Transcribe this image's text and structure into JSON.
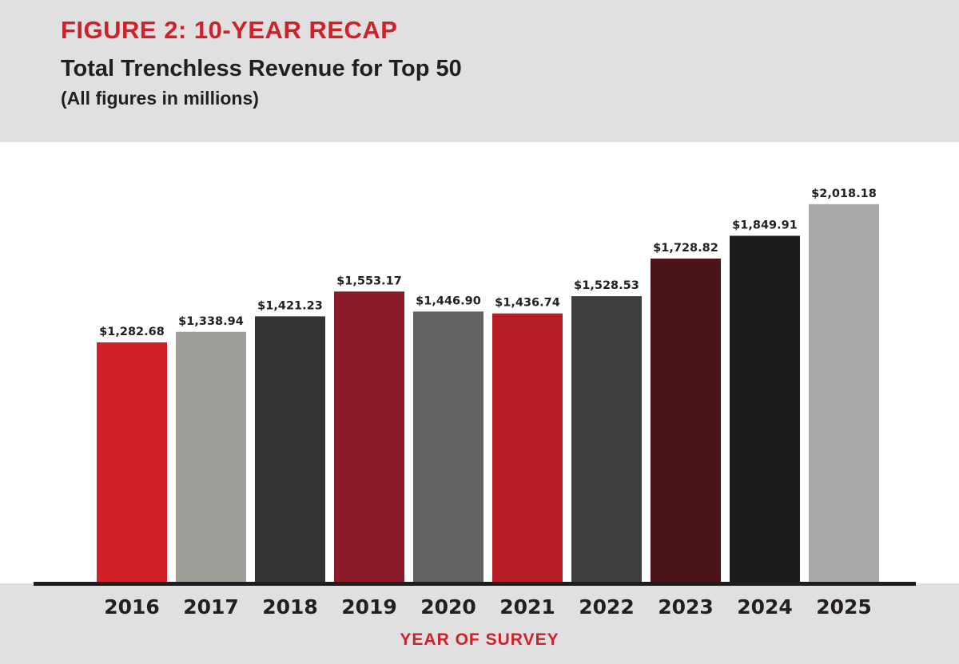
{
  "header": {
    "figure_label": "FIGURE 2: 10-YEAR RECAP",
    "title": "Total Trenchless Revenue for Top 50",
    "subtitle": "(All figures in millions)"
  },
  "chart_data": {
    "type": "bar",
    "title": "Total Trenchless Revenue for Top 50",
    "subtitle": "(All figures in millions)",
    "xlabel": "YEAR OF SURVEY",
    "ylabel": "",
    "ylim": [
      0,
      2100
    ],
    "grid": false,
    "categories": [
      "2016",
      "2017",
      "2018",
      "2019",
      "2020",
      "2021",
      "2022",
      "2023",
      "2024",
      "2025"
    ],
    "values": [
      1282.68,
      1338.94,
      1421.23,
      1553.17,
      1446.9,
      1436.74,
      1528.53,
      1728.82,
      1849.91,
      2018.18
    ],
    "data_labels": [
      "$1,282.68",
      "$1,338.94",
      "$1,421.23",
      "$1,553.17",
      "$1,446.90",
      "$1,436.74",
      "$1,528.53",
      "$1,728.82",
      "$1,849.91",
      "$2,018.18"
    ],
    "colors": [
      "#d0202a",
      "#a09e99",
      "#333333",
      "#8b1a28",
      "#626262",
      "#b81d25",
      "#3f3e3c",
      "#4a1418",
      "#1b1b1e",
      "#a8a8a8"
    ]
  }
}
